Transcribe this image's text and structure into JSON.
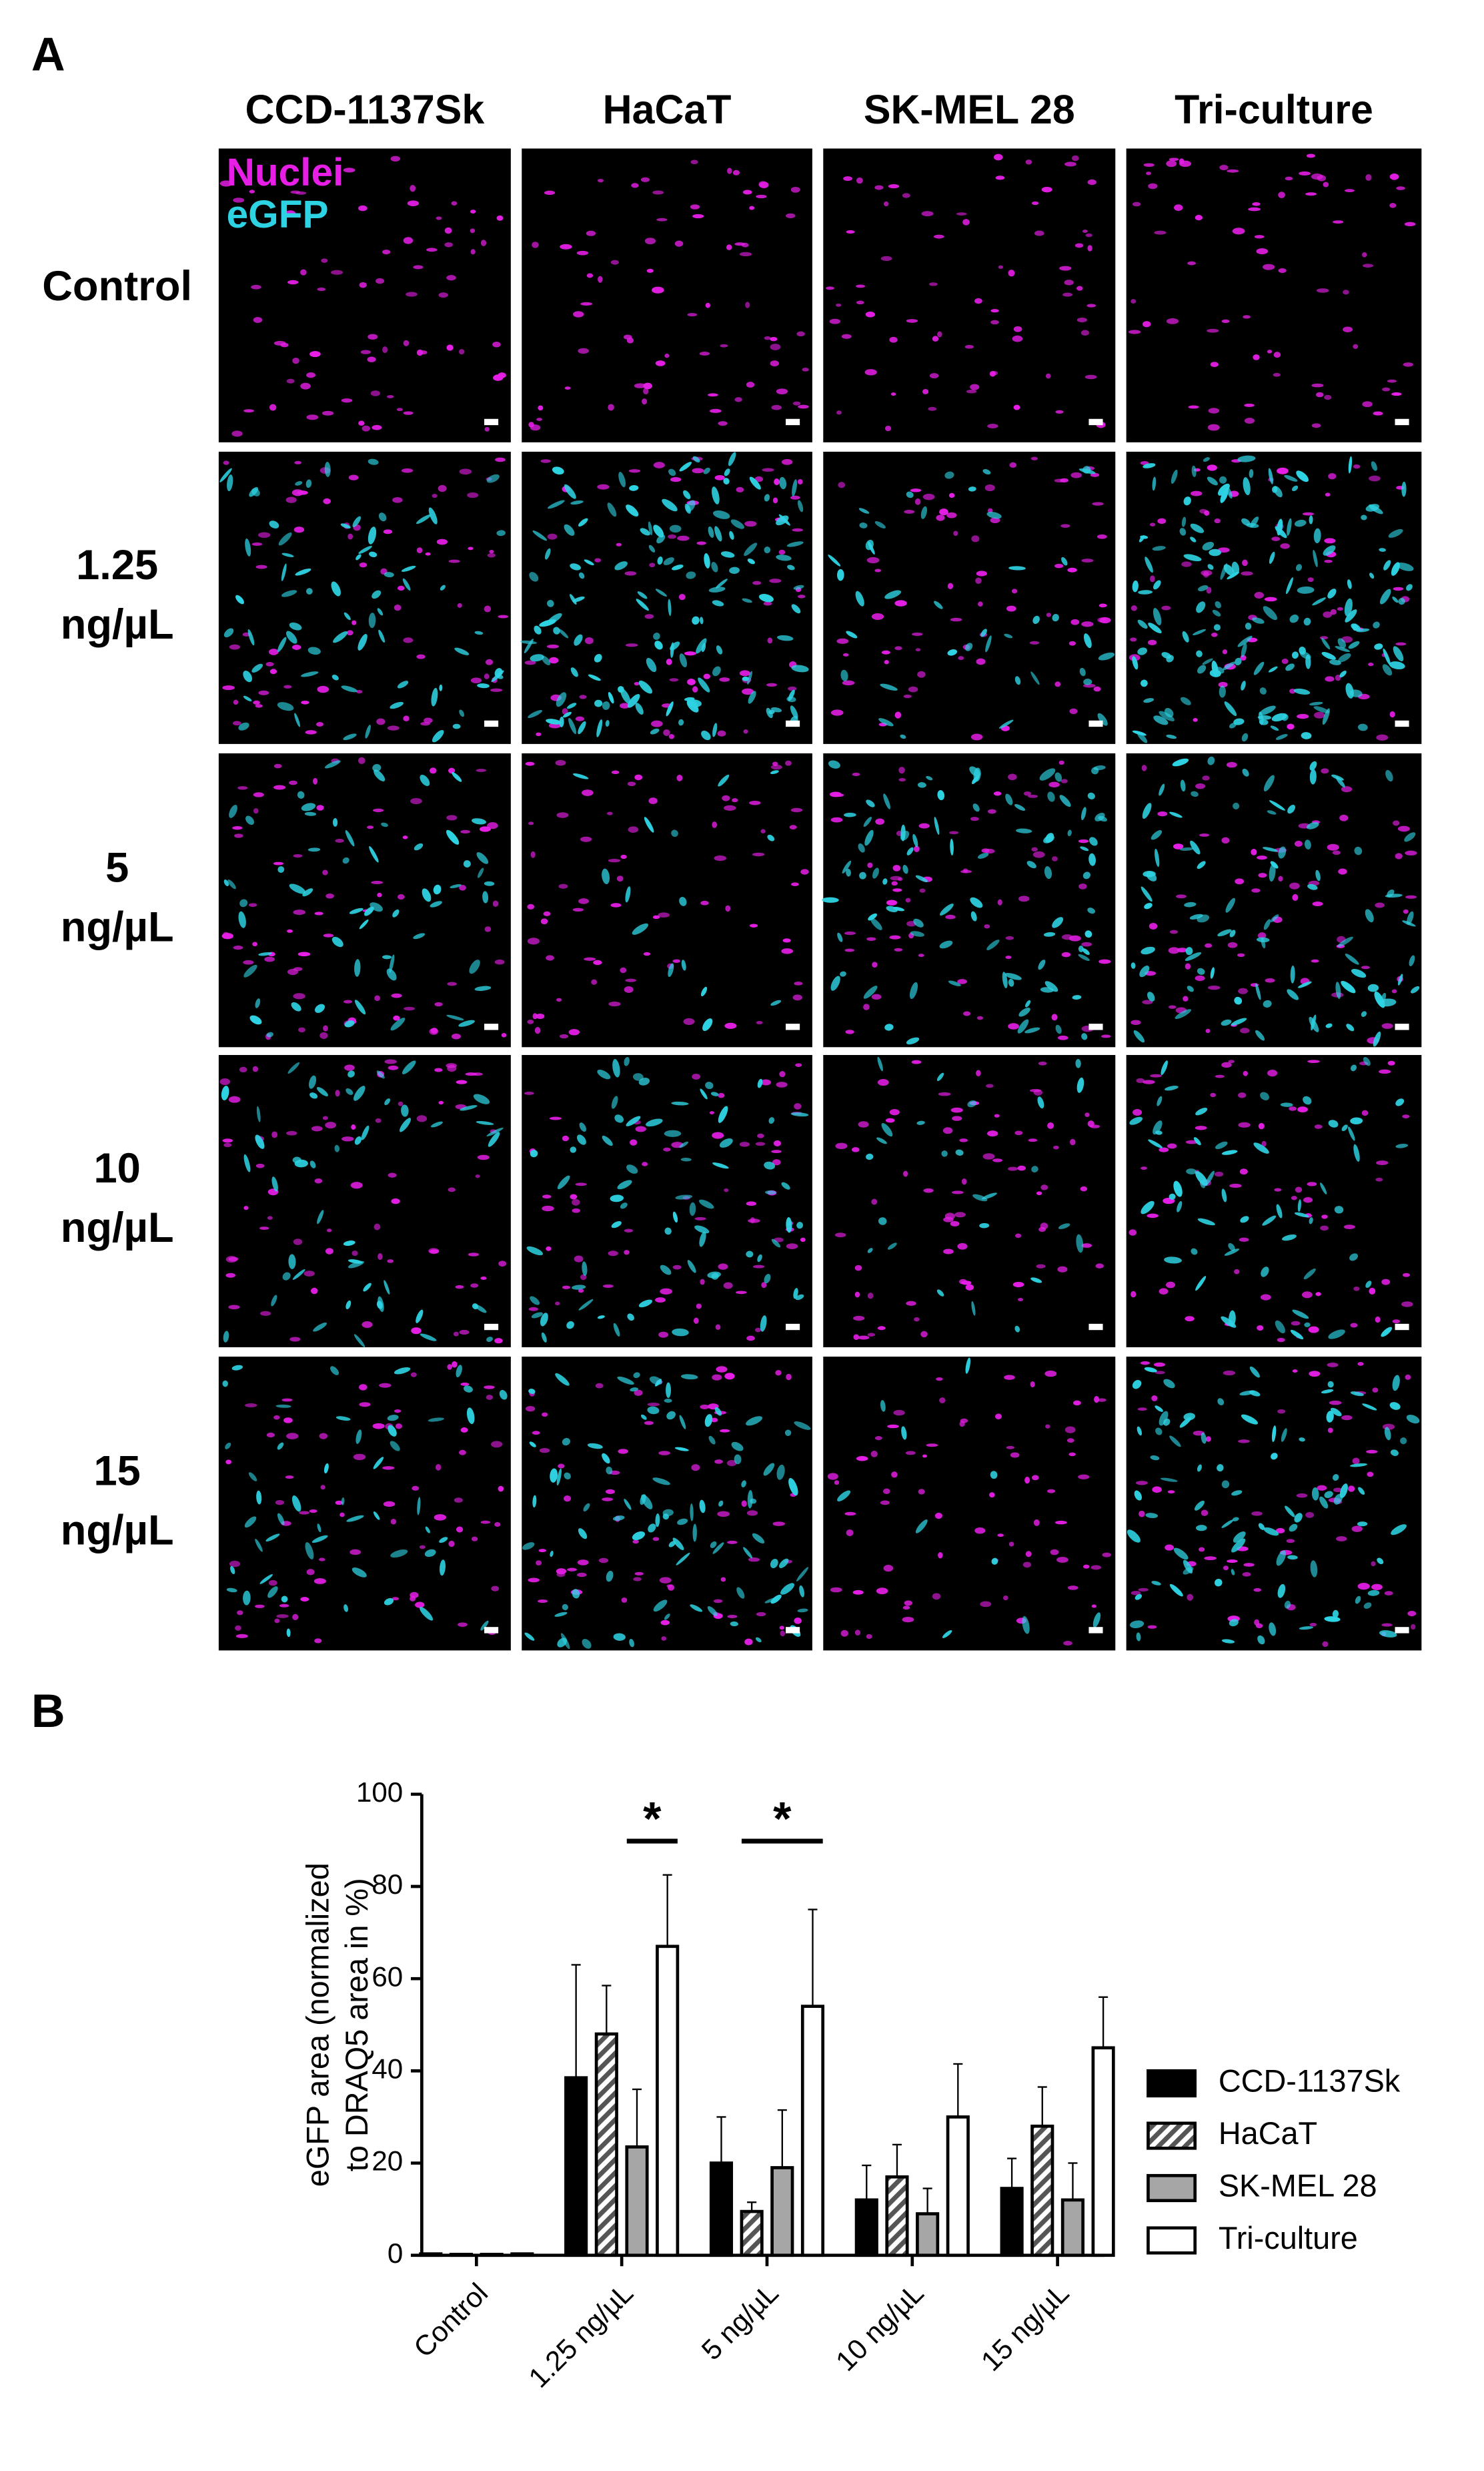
{
  "panel_a": {
    "label": "A",
    "columns": [
      "CCD-1137Sk",
      "HaCaT",
      "SK-MEL 28",
      "Tri-culture"
    ],
    "rows": [
      [
        "Control"
      ],
      [
        "1.25",
        "ng/µL"
      ],
      [
        "5",
        "ng/µL"
      ],
      [
        "10",
        "ng/µL"
      ],
      [
        "15",
        "ng/µL"
      ]
    ],
    "legend": [
      {
        "name": "Nuclei",
        "color": "#e61ee6"
      },
      {
        "name": "eGFP",
        "color": "#2ed3e3"
      }
    ]
  },
  "chart_data": {
    "type": "bar",
    "panel_label": "B",
    "y_label": [
      "eGFP area (normalized",
      "to DRAQ5 area in %)"
    ],
    "categories": [
      "Control",
      "1.25 ng/µL",
      "5 ng/µL",
      "10 ng/µL",
      "15 ng/µL"
    ],
    "series": [
      {
        "name": "CCD-1137Sk",
        "color": "#000000",
        "values": [
          0.3,
          38.5,
          20,
          12,
          14.5
        ],
        "errors": [
          0,
          24.5,
          10,
          7.5,
          6.5
        ]
      },
      {
        "name": "HaCaT",
        "color": "#ffffff",
        "hatch": "#555555",
        "values": [
          0.2,
          48,
          9.5,
          17,
          28
        ],
        "errors": [
          0,
          10.5,
          2,
          7,
          8.5
        ]
      },
      {
        "name": "SK-MEL 28",
        "color": "#a6a6a6",
        "values": [
          0.2,
          23.5,
          19,
          9,
          12
        ],
        "errors": [
          0,
          12.5,
          12.5,
          5.5,
          8
        ]
      },
      {
        "name": "Tri-culture",
        "color": "#ffffff",
        "values": [
          0.3,
          67,
          54,
          30,
          45
        ],
        "errors": [
          0,
          15.5,
          21,
          11.5,
          11
        ]
      }
    ],
    "significance": [
      {
        "label": "*",
        "category": "1.25 ng/µL",
        "from": "SK-MEL 28",
        "to": "Tri-culture"
      },
      {
        "label": "*",
        "category": "5 ng/µL",
        "from": "HaCaT",
        "to": "Tri-culture"
      }
    ],
    "ylim": [
      0,
      100
    ],
    "yticks": [
      0,
      20,
      40,
      60,
      80,
      100
    ],
    "legend": "right"
  }
}
